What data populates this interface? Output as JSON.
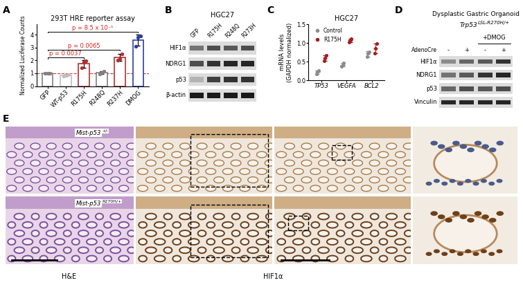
{
  "panel_letters": [
    "A",
    "B",
    "C",
    "D",
    "E"
  ],
  "chart_data": [
    {
      "type": "bar",
      "title": "293T HRE reporter assay",
      "y_label": "Normalized Luciferase Counts",
      "categories": [
        "GFP",
        "WT-p53",
        "R175H",
        "R248Q",
        "R237H",
        "DMOG"
      ],
      "values": [
        1.0,
        0.85,
        1.73,
        1.05,
        2.22,
        3.6
      ],
      "errors": [
        0.02,
        0.05,
        0.3,
        0.1,
        0.26,
        0.43
      ],
      "points": [
        [
          1.0,
          1.0,
          1.0
        ],
        [
          0.8,
          0.85,
          0.9
        ],
        [
          1.4,
          1.85,
          1.95
        ],
        [
          0.95,
          1.05,
          1.15
        ],
        [
          2.0,
          2.15,
          2.5
        ],
        [
          3.1,
          3.8,
          3.9
        ]
      ],
      "colors": [
        "#7f7f7f",
        "#bdbdbd",
        "#b03030",
        "#7f7f7f",
        "#b03030",
        "#2b3f9e"
      ],
      "reference_line": {
        "value": 1,
        "color": "#e03030",
        "line_style": "dashed"
      },
      "comparisons": [
        {
          "from": "GFP",
          "to": "R175H",
          "label": "p = 0.0037",
          "color": "#d62020"
        },
        {
          "from": "GFP",
          "to": "R237H",
          "label": "p = 0.0065",
          "color": "#d62020"
        },
        {
          "from": "GFP",
          "to": "DMOG",
          "label": "p = 8.5 x 10⁻⁵",
          "color": "#d62020"
        }
      ],
      "ylim": [
        0,
        4.8
      ],
      "yticks": [
        0,
        1,
        2,
        3,
        4
      ]
    },
    {
      "type": "dot",
      "title": "HGC27",
      "y_label": "mRNA levels\n(GAPDH normalized)",
      "categories": [
        "TP53",
        "VEGFA",
        "BCL2"
      ],
      "series": [
        {
          "name": "Control",
          "color": "#8c8c8c",
          "marker": "o",
          "values": [
            0.22,
            0.42,
            0.71
          ],
          "errors": [
            0.05,
            0.04,
            0.07
          ],
          "points": [
            [
              0.17,
              0.22,
              0.27
            ],
            [
              0.38,
              0.42,
              0.46
            ],
            [
              0.63,
              0.73,
              0.77
            ]
          ]
        },
        {
          "name": "R175H",
          "color": "#a31f1f",
          "marker": "o",
          "values": [
            0.6,
            1.07,
            0.86
          ],
          "errors": [
            0.08,
            0.04,
            0.13
          ],
          "points": [
            [
              0.52,
              0.6,
              0.68
            ],
            [
              1.03,
              1.07,
              1.11
            ],
            [
              0.73,
              0.86,
              0.99
            ]
          ]
        }
      ],
      "ylim": [
        0,
        1.5
      ],
      "yticks": [
        {
          "value": 0,
          "label": "0.0"
        },
        {
          "value": 0.5,
          "label": "0.5"
        },
        {
          "value": 1,
          "label": "1.0"
        },
        {
          "value": 1.5,
          "label": "1.5"
        }
      ],
      "legend": "upper left"
    }
  ],
  "blot_B": {
    "title": "HGC27",
    "lanes": [
      "GFP",
      "R175H",
      "R248Q",
      "R273H"
    ],
    "rows": [
      "HIF1α",
      "NDRG1",
      "p53",
      "β-actin"
    ]
  },
  "blot_D": {
    "title": "Dysplastic Gastric Organoid",
    "subtitle_gene": "Trp53",
    "subtitle_allele": "LSL-R270H/+",
    "treatment": "+DMOG",
    "condition": "AdenoCre",
    "condition_signs": [
      "-",
      "+",
      "-",
      "+"
    ],
    "rows": [
      "HIF1α",
      "NDRG1",
      "p53",
      "Vinculin"
    ]
  },
  "histology": {
    "rows": [
      {
        "gene": "Mist-p53",
        "allele": "+/-"
      },
      {
        "gene": "Mist-p53",
        "allele": "R270H/+"
      }
    ],
    "stain_labels": [
      "H&E",
      "HIF1α"
    ]
  }
}
